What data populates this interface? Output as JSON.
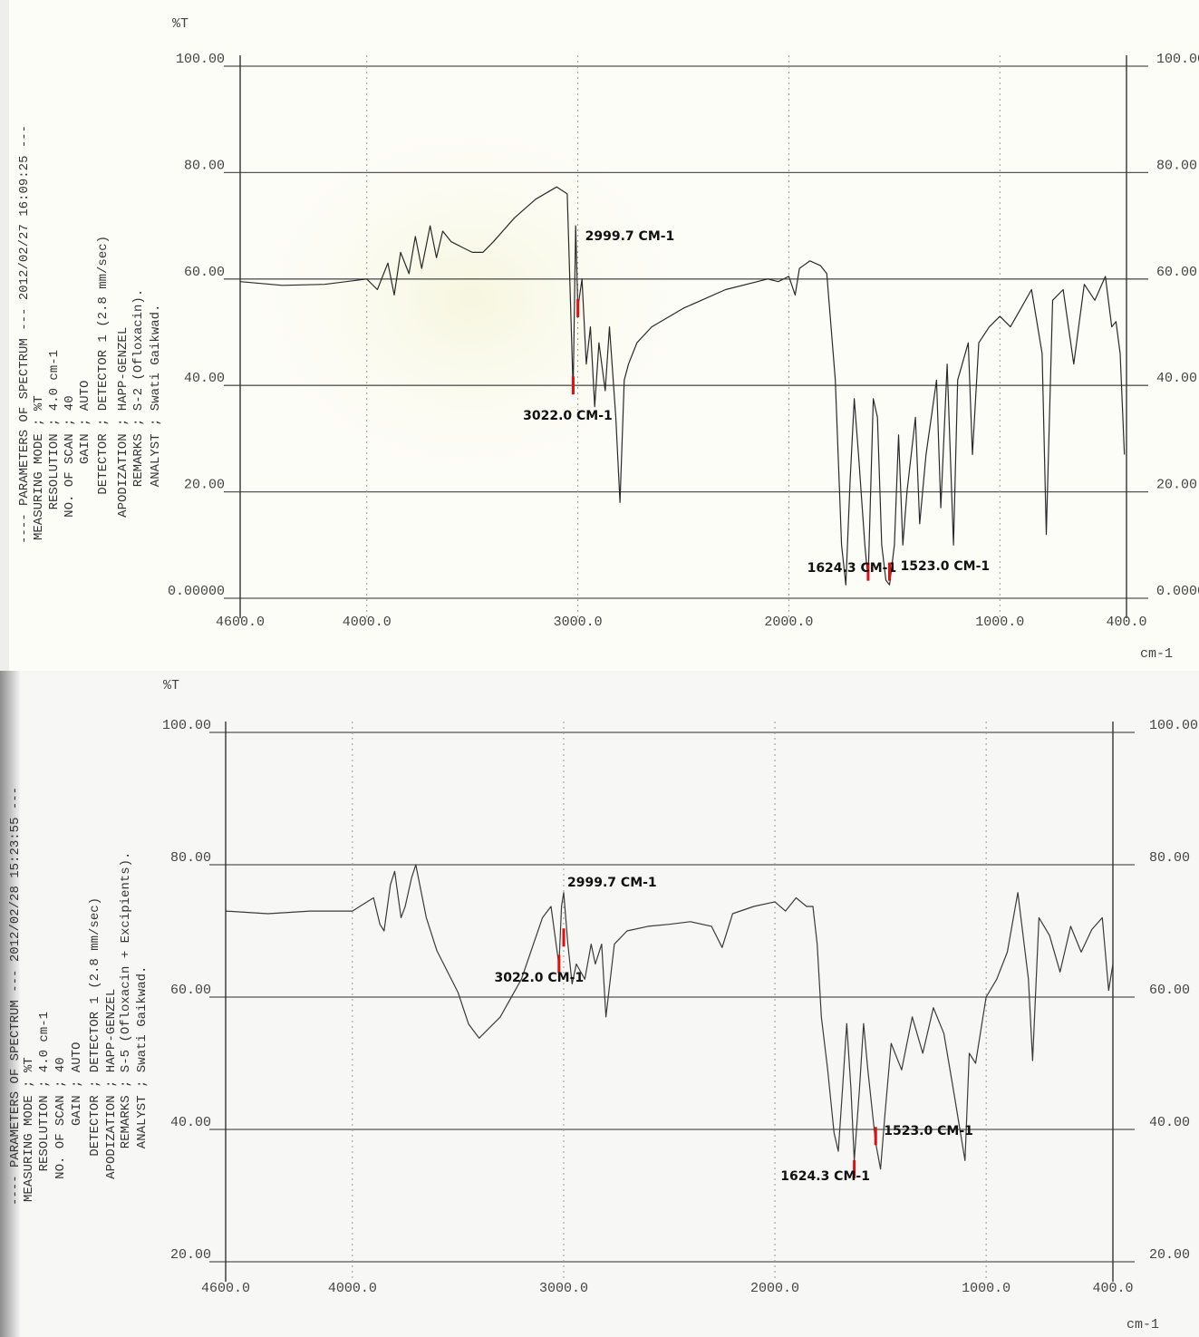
{
  "chart_data": [
    {
      "type": "line",
      "y_label": "%T",
      "x_label": "cm-1",
      "color": "#2a2a2a",
      "grid": true,
      "parameters": [
        "---- PARAMETERS OF SPECTRUM --- 2012/02/27 16:09:25 ---",
        "MEASURING MODE ; %T",
        "RESOLUTION ; 4.0 cm-1",
        "NO. OF SCAN ; 40",
        "GAIN ; AUTO",
        "DETECTOR ; DETECTOR 1 (2.8 mm/sec)",
        "APODIZATION ; HAPP-GENZEL",
        "REMARKS ; S-2 (Ofloxacin).",
        "ANALYST ; Swati Gaikwad."
      ],
      "xlim": [
        4600,
        400
      ],
      "ylim": [
        0,
        100
      ],
      "xticks": [
        {
          "value": 4600,
          "label": "4600.0"
        },
        {
          "value": 4000,
          "label": "4000.0"
        },
        {
          "value": 3000,
          "label": "3000.0"
        },
        {
          "value": 2000,
          "label": "2000.0"
        },
        {
          "value": 1000,
          "label": "1000.0"
        },
        {
          "value": 400,
          "label": "400.0"
        }
      ],
      "yticks": [
        {
          "value": 100,
          "label": "100.00"
        },
        {
          "value": 80,
          "label": "80.00"
        },
        {
          "value": 60,
          "label": "60.00"
        },
        {
          "value": 40,
          "label": "40.00"
        },
        {
          "value": 20,
          "label": "20.00"
        },
        {
          "value": 0,
          "label": "0.00000"
        }
      ],
      "x": [
        4600,
        4400,
        4200,
        4000,
        3950,
        3900,
        3870,
        3840,
        3800,
        3770,
        3740,
        3700,
        3670,
        3640,
        3600,
        3550,
        3500,
        3450,
        3400,
        3300,
        3200,
        3100,
        3050,
        3022,
        3010,
        2999.7,
        2980,
        2960,
        2940,
        2920,
        2900,
        2870,
        2850,
        2820,
        2800,
        2780,
        2760,
        2720,
        2650,
        2500,
        2300,
        2100,
        2050,
        2000,
        1970,
        1950,
        1900,
        1850,
        1820,
        1780,
        1750,
        1730,
        1710,
        1690,
        1670,
        1640,
        1624.3,
        1600,
        1580,
        1560,
        1540,
        1523,
        1500,
        1480,
        1460,
        1440,
        1400,
        1380,
        1350,
        1300,
        1280,
        1250,
        1220,
        1200,
        1150,
        1130,
        1100,
        1050,
        1000,
        950,
        900,
        850,
        800,
        780,
        750,
        700,
        650,
        600,
        550,
        500,
        470,
        450,
        430,
        410
      ],
      "values": [
        59.5,
        58.8,
        59,
        60,
        58,
        63,
        57,
        65,
        61,
        68,
        62,
        70,
        64,
        69,
        67,
        66,
        65,
        65,
        67,
        71.5,
        75,
        77.3,
        76,
        39,
        70,
        54.5,
        60,
        44,
        51,
        36,
        48,
        39,
        51,
        34,
        18,
        41,
        44,
        48,
        51,
        54.5,
        58,
        60,
        59.5,
        60.5,
        57,
        62,
        63.4,
        62.5,
        61,
        41,
        10,
        2.5,
        22,
        37.5,
        27,
        10,
        3.4,
        37.5,
        34,
        10,
        3.4,
        2.5,
        10,
        30.7,
        10,
        20,
        34,
        14,
        27,
        41,
        17,
        44,
        10,
        41,
        48,
        27,
        48,
        51,
        53,
        51,
        54.5,
        58,
        46,
        12,
        56,
        58,
        44,
        59,
        56,
        60.5,
        51,
        52,
        46,
        27
      ],
      "annotations": [
        {
          "label": "2999.7 CM-1",
          "x": 2999.7,
          "y": 54.5
        },
        {
          "label": "3022.0 CM-1",
          "x": 3022.0,
          "y": 40
        },
        {
          "label": "1624.3 CM-1",
          "x": 1624.3,
          "y": 5
        },
        {
          "label": "1523.0 CM-1",
          "x": 1523.0,
          "y": 5
        }
      ]
    },
    {
      "type": "line",
      "y_label": "%T",
      "x_label": "cm-1",
      "color": "#3a3a3a",
      "grid": true,
      "parameters": [
        "---- PARAMETERS OF SPECTRUM --- 2012/02/28 15:23:55 ---",
        "MEASURING MODE ; %T",
        "RESOLUTION ; 4.0 cm-1",
        "NO. OF SCAN ; 40",
        "GAIN ; AUTO",
        "DETECTOR ; DETECTOR 1 (2.8 mm/sec)",
        "APODIZATION ; HAPP-GENZEL",
        "REMARKS ; S-5 (Ofloxacin + Excipients).",
        "ANALYST ; Swati Gaikwad."
      ],
      "xlim": [
        4600,
        400
      ],
      "ylim": [
        20,
        100
      ],
      "xticks": [
        {
          "value": 4600,
          "label": "4600.0"
        },
        {
          "value": 4000,
          "label": "4000.0"
        },
        {
          "value": 3000,
          "label": "3000.0"
        },
        {
          "value": 2000,
          "label": "2000.0"
        },
        {
          "value": 1000,
          "label": "1000.0"
        },
        {
          "value": 400,
          "label": "400.0"
        }
      ],
      "yticks": [
        {
          "value": 100,
          "label": "100.00"
        },
        {
          "value": 80,
          "label": "80.00"
        },
        {
          "value": 60,
          "label": "60.00"
        },
        {
          "value": 40,
          "label": "40.00"
        },
        {
          "value": 20,
          "label": "20.00"
        }
      ],
      "x": [
        4600,
        4400,
        4200,
        4000,
        3950,
        3900,
        3870,
        3850,
        3820,
        3800,
        3770,
        3750,
        3720,
        3700,
        3650,
        3600,
        3500,
        3450,
        3400,
        3300,
        3200,
        3100,
        3060,
        3022,
        3010,
        2999.7,
        2980,
        2960,
        2940,
        2900,
        2870,
        2850,
        2820,
        2800,
        2760,
        2700,
        2600,
        2500,
        2400,
        2300,
        2250,
        2200,
        2100,
        2000,
        1950,
        1900,
        1850,
        1820,
        1800,
        1780,
        1750,
        1720,
        1700,
        1680,
        1660,
        1640,
        1624.3,
        1600,
        1580,
        1560,
        1523,
        1500,
        1480,
        1450,
        1400,
        1350,
        1300,
        1250,
        1200,
        1150,
        1100,
        1080,
        1050,
        1000,
        950,
        900,
        850,
        800,
        780,
        750,
        700,
        650,
        600,
        550,
        500,
        450,
        420,
        400
      ],
      "values": [
        73,
        72.6,
        73,
        73,
        74,
        75,
        71,
        70,
        77,
        79,
        72,
        73.7,
        78,
        80,
        72,
        67,
        60.7,
        55.9,
        53.8,
        57,
        62.7,
        72,
        73.7,
        64.8,
        73.7,
        75.8,
        68,
        62,
        65,
        62.7,
        68,
        65,
        68,
        57,
        68,
        70,
        70.7,
        71,
        71.4,
        70.7,
        67.5,
        72.6,
        73.7,
        74.4,
        73,
        75,
        73.7,
        73.7,
        68,
        57,
        49,
        39.5,
        36.7,
        46,
        56,
        46,
        35.3,
        46,
        56,
        49,
        38,
        34,
        42,
        53,
        49,
        57,
        51.5,
        58.4,
        54.5,
        45,
        35.3,
        51.5,
        50,
        60,
        62.7,
        66.8,
        75.8,
        62.7,
        50.4,
        72,
        69.3,
        63.8,
        70.7,
        66.8,
        70.2,
        72,
        61,
        65
      ],
      "annotations": [
        {
          "label": "2999.7 CM-1",
          "x": 2999.7,
          "y": 69
        },
        {
          "label": "3022.0 CM-1",
          "x": 3022.0,
          "y": 65
        },
        {
          "label": "1624.3 CM-1",
          "x": 1624.3,
          "y": 34
        },
        {
          "label": "1523.0 CM-1",
          "x": 1523.0,
          "y": 39
        }
      ]
    }
  ]
}
